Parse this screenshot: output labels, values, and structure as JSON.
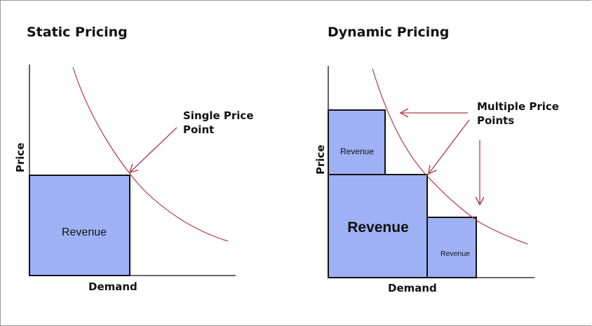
{
  "colors": {
    "revenue_fill": "#9fb1f5",
    "box_stroke": "#111111",
    "curve": "#b03a48",
    "arrow": "#b03a48",
    "axis": "#111111"
  },
  "left": {
    "title": "Static Pricing",
    "y_label": "Price",
    "x_label": "Demand",
    "revenue_label": "Revenue",
    "annotation_line1": "Single Price",
    "annotation_line2": "Point"
  },
  "right": {
    "title": "Dynamic Pricing",
    "y_label": "Price",
    "x_label": "Demand",
    "revenue_large": "Revenue",
    "revenue_top": "Revenue",
    "revenue_small": "Revenue",
    "annotation_line1": "Multiple Price",
    "annotation_line2": "Points"
  }
}
